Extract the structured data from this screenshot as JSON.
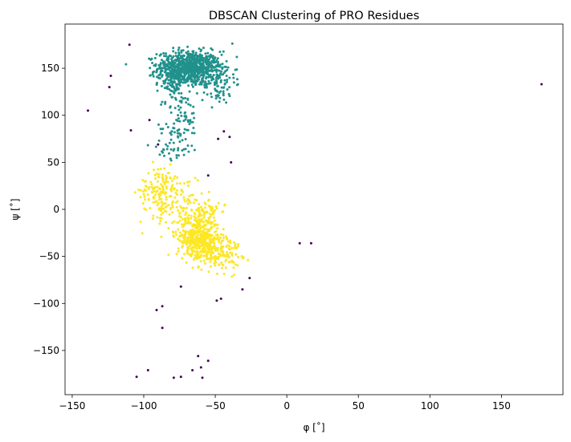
{
  "chart_data": {
    "type": "scatter",
    "title": "DBSCAN Clustering of PRO Residues",
    "xlabel": "φ [˚]",
    "ylabel": "ψ [˚]",
    "xlim": [
      -155,
      193
    ],
    "ylim": [
      -197,
      197
    ],
    "xticks": [
      -150,
      -100,
      -50,
      0,
      50,
      100,
      150
    ],
    "yticks": [
      -150,
      -100,
      -50,
      0,
      50,
      100,
      150
    ],
    "xtick_labels": [
      "−150",
      "−100",
      "−50",
      "0",
      "50",
      "100",
      "150"
    ],
    "ytick_labels": [
      "−150",
      "−100",
      "−50",
      "0",
      "50",
      "100",
      "150"
    ],
    "grid": false,
    "legend": false,
    "series_colors": {
      "noise": "#440154",
      "cluster_1": "#21918c",
      "cluster_2": "#fde725"
    },
    "series": [
      {
        "color": "#440154",
        "points": [
          [
            -110,
            175
          ],
          [
            -123,
            142
          ],
          [
            -124,
            130
          ],
          [
            -139,
            105
          ],
          [
            -109,
            84
          ],
          [
            -96,
            95
          ],
          [
            -90,
            69
          ],
          [
            -44,
            83
          ],
          [
            -48,
            75
          ],
          [
            -40,
            77
          ],
          [
            -39,
            50
          ],
          [
            -55,
            36
          ],
          [
            178,
            133
          ],
          [
            9,
            -36
          ],
          [
            17,
            -36
          ],
          [
            -74,
            -82
          ],
          [
            -26,
            -73
          ],
          [
            -31,
            -85
          ],
          [
            -46,
            -95
          ],
          [
            -49,
            -97
          ],
          [
            -91,
            -107
          ],
          [
            -87,
            -103
          ],
          [
            -87,
            -126
          ],
          [
            -62,
            -156
          ],
          [
            -55,
            -161
          ],
          [
            -97,
            -171
          ],
          [
            -66,
            -171
          ],
          [
            -60,
            -168
          ],
          [
            -105,
            -178
          ],
          [
            -79,
            -179
          ],
          [
            -74,
            -178
          ],
          [
            -59,
            -179
          ]
        ]
      },
      {
        "color": "#21918c",
        "centers": [
          {
            "x": -68,
            "y": 150,
            "sx": 11,
            "sy": 9,
            "n": 780
          },
          {
            "x": -80,
            "y": 140,
            "sx": 5,
            "sy": 13,
            "n": 110
          },
          {
            "x": -48,
            "y": 135,
            "sx": 6,
            "sy": 12,
            "n": 90
          },
          {
            "x": -73,
            "y": 95,
            "sx": 6,
            "sy": 17,
            "n": 70
          },
          {
            "x": -80,
            "y": 70,
            "sx": 7,
            "sy": 10,
            "n": 45
          }
        ]
      },
      {
        "color": "#fde725",
        "centers": [
          {
            "x": -90,
            "y": 20,
            "sx": 6,
            "sy": 14,
            "n": 110
          },
          {
            "x": -72,
            "y": 0,
            "sx": 9,
            "sy": 12,
            "n": 100
          },
          {
            "x": -62,
            "y": -30,
            "sx": 7,
            "sy": 10,
            "n": 380
          },
          {
            "x": -50,
            "y": -45,
            "sx": 9,
            "sy": 10,
            "n": 190
          },
          {
            "x": -55,
            "y": -5,
            "sx": 4,
            "sy": 8,
            "n": 60
          },
          {
            "x": -78,
            "y": 25,
            "sx": 7,
            "sy": 8,
            "n": 40
          }
        ]
      }
    ]
  }
}
